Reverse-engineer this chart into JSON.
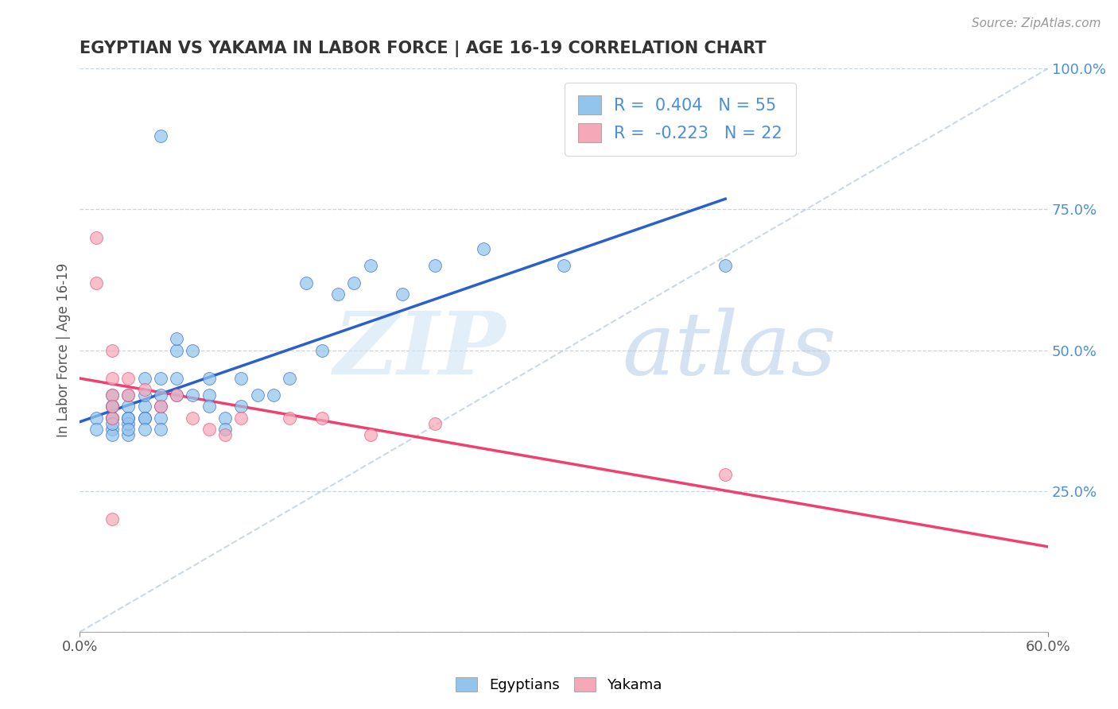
{
  "title": "EGYPTIAN VS YAKAMA IN LABOR FORCE | AGE 16-19 CORRELATION CHART",
  "source": "Source: ZipAtlas.com",
  "ylabel": "In Labor Force | Age 16-19",
  "xlim": [
    0.0,
    0.6
  ],
  "ylim": [
    0.0,
    1.0
  ],
  "yticks_right": [
    0.25,
    0.5,
    0.75,
    1.0
  ],
  "ytick_labels_right": [
    "25.0%",
    "50.0%",
    "75.0%",
    "100.0%"
  ],
  "r_egyptian": 0.404,
  "n_egyptian": 55,
  "r_yakama": -0.223,
  "n_yakama": 22,
  "color_egyptian": "#92C5EC",
  "color_yakama": "#F4A8B8",
  "color_line_egyptian": "#2B5FC9",
  "color_line_yakama": "#F04070",
  "color_diag": "#B0C4D8",
  "egyptian_x": [
    0.01,
    0.01,
    0.02,
    0.02,
    0.02,
    0.02,
    0.02,
    0.02,
    0.02,
    0.02,
    0.03,
    0.03,
    0.03,
    0.03,
    0.03,
    0.03,
    0.03,
    0.04,
    0.04,
    0.04,
    0.04,
    0.04,
    0.04,
    0.05,
    0.05,
    0.05,
    0.05,
    0.05,
    0.06,
    0.06,
    0.06,
    0.06,
    0.07,
    0.07,
    0.08,
    0.08,
    0.08,
    0.09,
    0.09,
    0.1,
    0.1,
    0.11,
    0.12,
    0.13,
    0.14,
    0.15,
    0.16,
    0.17,
    0.18,
    0.2,
    0.22,
    0.25,
    0.3,
    0.4,
    0.05
  ],
  "egyptian_y": [
    0.38,
    0.36,
    0.4,
    0.38,
    0.42,
    0.36,
    0.38,
    0.35,
    0.37,
    0.4,
    0.38,
    0.4,
    0.35,
    0.37,
    0.38,
    0.36,
    0.42,
    0.38,
    0.4,
    0.42,
    0.45,
    0.38,
    0.36,
    0.4,
    0.42,
    0.45,
    0.38,
    0.36,
    0.5,
    0.52,
    0.45,
    0.42,
    0.5,
    0.42,
    0.42,
    0.45,
    0.4,
    0.38,
    0.36,
    0.4,
    0.45,
    0.42,
    0.42,
    0.45,
    0.62,
    0.5,
    0.6,
    0.62,
    0.65,
    0.6,
    0.65,
    0.68,
    0.65,
    0.65,
    0.88
  ],
  "yakama_x": [
    0.01,
    0.01,
    0.02,
    0.02,
    0.02,
    0.02,
    0.02,
    0.03,
    0.03,
    0.04,
    0.05,
    0.06,
    0.07,
    0.08,
    0.09,
    0.1,
    0.13,
    0.15,
    0.18,
    0.22,
    0.4,
    0.02
  ],
  "yakama_y": [
    0.62,
    0.7,
    0.5,
    0.45,
    0.42,
    0.38,
    0.4,
    0.42,
    0.45,
    0.43,
    0.4,
    0.42,
    0.38,
    0.36,
    0.35,
    0.38,
    0.38,
    0.38,
    0.35,
    0.37,
    0.28,
    0.2
  ],
  "trend_e_x0": 0.0,
  "trend_e_x1": 0.4,
  "trend_k_x0": 0.0,
  "trend_k_x1": 0.6
}
